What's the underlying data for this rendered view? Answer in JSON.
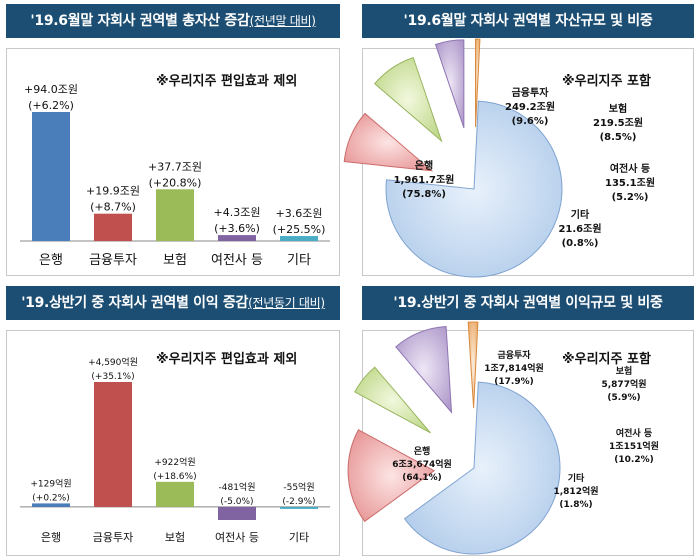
{
  "panels": [
    {
      "title": "'19.6월말 자회사 권역별 총자산 증감",
      "title_note": "(전년말 대비)",
      "note": "※우리지주 편입효과 제외"
    },
    {
      "title": "'19.6월말 자회사 권역별 자산규모 및 비중",
      "title_note": "",
      "note": "※우리지주 포함"
    },
    {
      "title": "'19.상반기 중 자회사 권역별 이익 증감",
      "title_note": "(전년동기 대비)",
      "note": "※우리지주 편입효과 제외"
    },
    {
      "title": "'19.상반기 중 자회사 권역별 이익규모 및 비중",
      "title_note": "",
      "note": "※우리지주 포함"
    }
  ],
  "colors": {
    "header": "#1c4e73",
    "bank": "#4a7ebb",
    "invest": "#c0504d",
    "insurance": "#9bbb59",
    "card": "#8064a2",
    "other": "#4bacc6"
  },
  "chart_data": [
    {
      "type": "bar",
      "categories": [
        "은행",
        "금융투자",
        "보험",
        "여전사 등",
        "기타"
      ],
      "values": [
        94.0,
        19.9,
        37.7,
        4.3,
        3.6
      ],
      "labels": [
        "+94.0조원",
        "+19.9조원",
        "+37.7조원",
        "+4.3조원",
        "+3.6조원"
      ],
      "sublabels": [
        "(+6.2%)",
        "(+8.7%)",
        "(+20.8%)",
        "(+3.6%)",
        "(+25.5%)"
      ],
      "ylim": [
        0,
        94
      ]
    },
    {
      "type": "pie",
      "slices": [
        {
          "name": "은행",
          "value": 75.8,
          "amount": "1,961.7조원",
          "pct": "(75.8%)"
        },
        {
          "name": "금융투자",
          "value": 9.6,
          "amount": "249.2조원",
          "pct": "(9.6%)"
        },
        {
          "name": "보험",
          "value": 8.5,
          "amount": "219.5조원",
          "pct": "(8.5%)"
        },
        {
          "name": "여전사 등",
          "value": 5.2,
          "amount": "135.1조원",
          "pct": "(5.2%)"
        },
        {
          "name": "기타",
          "value": 0.8,
          "amount": "21.6조원",
          "pct": "(0.8%)"
        }
      ]
    },
    {
      "type": "bar",
      "categories": [
        "은행",
        "금융투자",
        "보험",
        "여전사 등",
        "기타"
      ],
      "values": [
        129,
        4590,
        922,
        -481,
        -55
      ],
      "labels": [
        "+129억원",
        "+4,590억원",
        "+922억원",
        "-481억원",
        "-55억원"
      ],
      "sublabels": [
        "(+0.2%)",
        "(+35.1%)",
        "(+18.6%)",
        "(-5.0%)",
        "(-2.9%)"
      ],
      "ylim": [
        -481,
        4590
      ]
    },
    {
      "type": "pie",
      "slices": [
        {
          "name": "은행",
          "value": 64.1,
          "amount": "6조3,674억원",
          "pct": "(64.1%)"
        },
        {
          "name": "금융투자",
          "value": 17.9,
          "amount": "1조7,814억원",
          "pct": "(17.9%)"
        },
        {
          "name": "보험",
          "value": 5.9,
          "amount": "5,877억원",
          "pct": "(5.9%)"
        },
        {
          "name": "여전사 등",
          "value": 10.2,
          "amount": "1조151억원",
          "pct": "(10.2%)"
        },
        {
          "name": "기타",
          "value": 1.8,
          "amount": "1,812억원",
          "pct": "(1.8%)"
        }
      ]
    }
  ]
}
